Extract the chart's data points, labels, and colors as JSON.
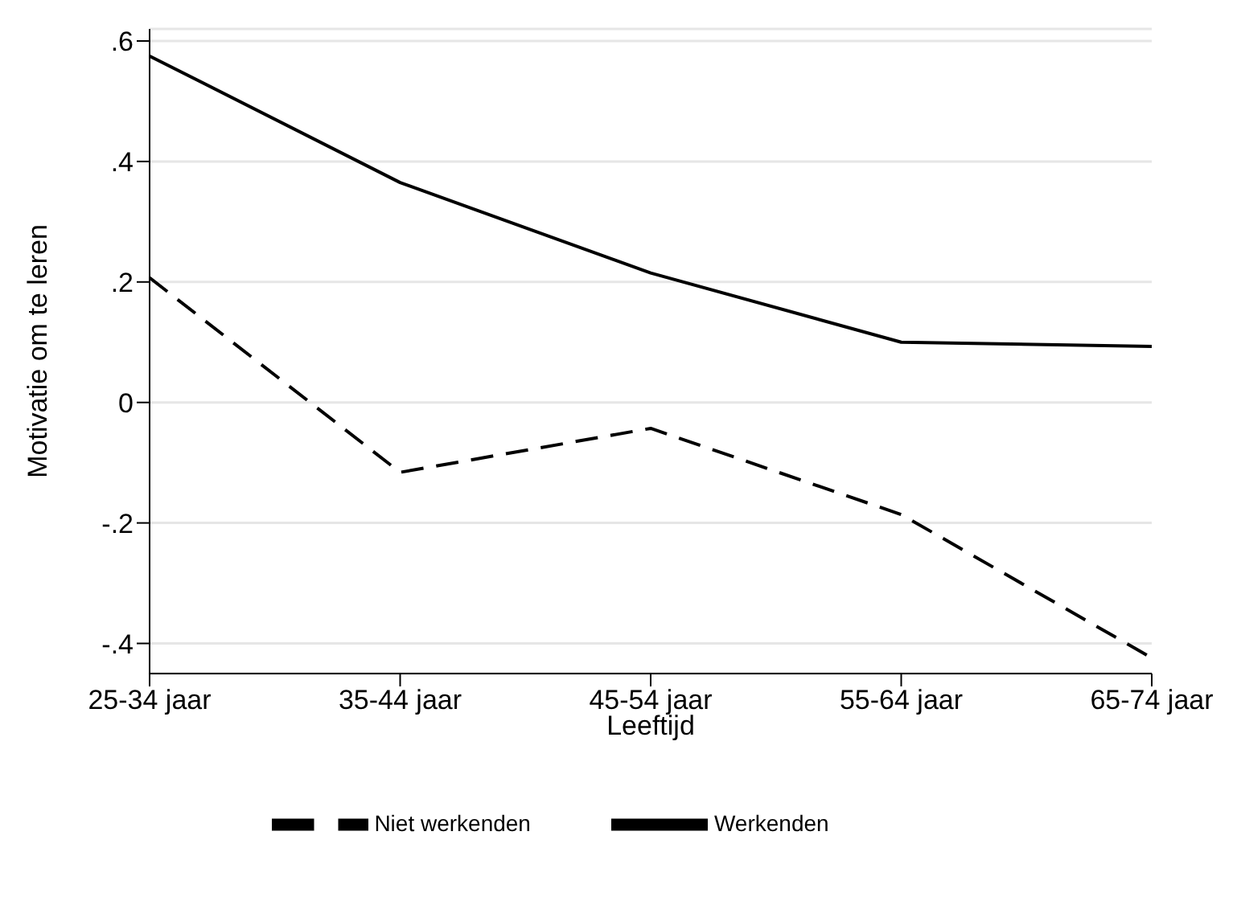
{
  "chart_data": {
    "type": "line",
    "xlabel": "Leeftijd",
    "ylabel": "Motivatie om te leren",
    "categories": [
      "25-34 jaar",
      "35-44 jaar",
      "45-54 jaar",
      "55-64 jaar",
      "65-74 jaar"
    ],
    "series": [
      {
        "name": "Werkenden",
        "color": "#000000",
        "line_style": "solid",
        "values": [
          0.575,
          0.365,
          0.215,
          0.1,
          0.093
        ]
      },
      {
        "name": "Niet werkenden",
        "color": "#000000",
        "line_style": "dashed",
        "values": [
          0.207,
          -0.116,
          -0.043,
          -0.186,
          -0.424
        ]
      }
    ],
    "ylim": [
      -0.45,
      0.62
    ],
    "yticks": [
      {
        "value": -0.4,
        "label": "-.4"
      },
      {
        "value": -0.2,
        "label": "-.2"
      },
      {
        "value": 0,
        "label": "0"
      },
      {
        "value": 0.2,
        "label": ".2"
      },
      {
        "value": 0.4,
        "label": ".4"
      },
      {
        "value": 0.6,
        "label": ".6"
      }
    ],
    "grid": "y",
    "legend": "bottom",
    "marker": "none"
  }
}
